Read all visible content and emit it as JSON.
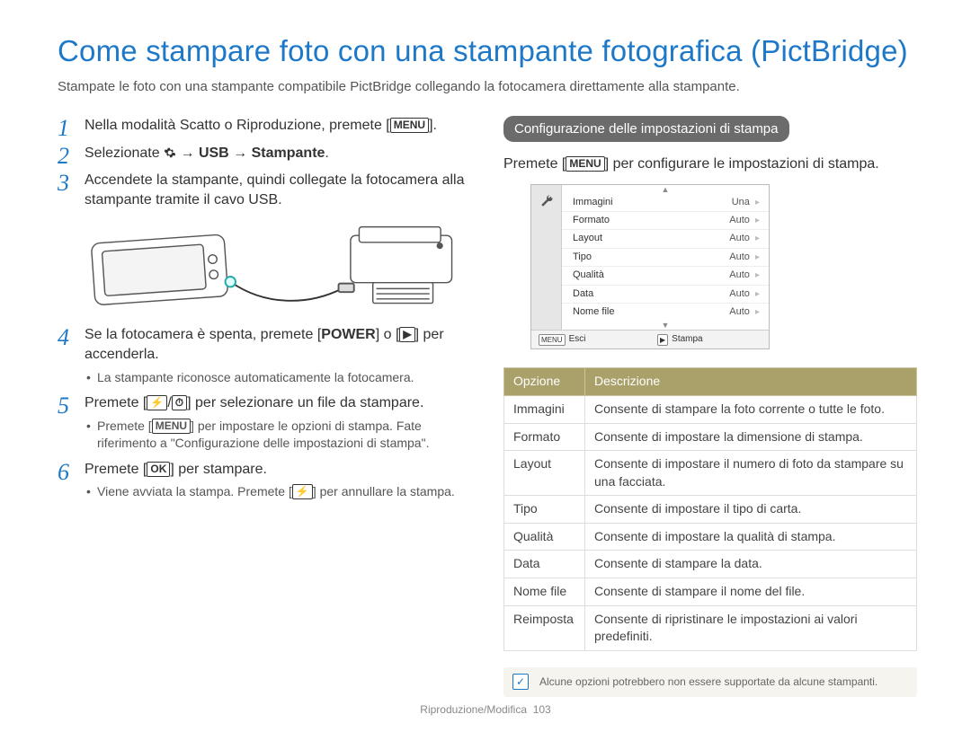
{
  "title": "Come stampare foto con una stampante fotografica (PictBridge)",
  "subtitle": "Stampate le foto con una stampante compatibile PictBridge collegando la fotocamera direttamente alla stampante.",
  "steps": {
    "s1_pre": "Nella modalità Scatto o Riproduzione, premete [",
    "s1_key": "MENU",
    "s1_post": "].",
    "s2_pre": "Selezionate ",
    "s2_mid1": " → ",
    "s2_usb": "USB",
    "s2_mid2": " → ",
    "s2_stamp": "Stampante",
    "s2_post": ".",
    "s3": "Accendete la stampante, quindi collegate la fotocamera alla stampante tramite il cavo USB.",
    "s4_pre": "Se la fotocamera è spenta, premete [",
    "s4_key": "POWER",
    "s4_mid": "] o [",
    "s4_icon_alt": "▶",
    "s4_post": "] per accenderla.",
    "s4_sub1": "La stampante riconosce automaticamente la fotocamera.",
    "s5_pre": "Premete [",
    "s5_icon1": "⚡",
    "s5_mid": "/",
    "s5_icon2": "⏱",
    "s5_post": "] per selezionare un file da stampare.",
    "s5_sub1_pre": "Premete [",
    "s5_sub1_key": "MENU",
    "s5_sub1_post": "] per impostare le opzioni di stampa. Fate riferimento a \"Configurazione delle impostazioni di stampa\".",
    "s6_pre": "Premete [",
    "s6_key": "OK",
    "s6_post": "] per stampare.",
    "s6_sub1_pre": "Viene avviata la stampa. Premete [",
    "s6_sub1_icon": "⚡",
    "s6_sub1_post": "] per annullare la stampa."
  },
  "right": {
    "badge": "Configurazione delle impostazioni di stampa",
    "intro_pre": "Premete [",
    "intro_key": "MENU",
    "intro_post": "] per configurare le impostazioni di stampa."
  },
  "lcd": {
    "rows": [
      {
        "label": "Immagini",
        "value": "Una"
      },
      {
        "label": "Formato",
        "value": "Auto"
      },
      {
        "label": "Layout",
        "value": "Auto"
      },
      {
        "label": "Tipo",
        "value": "Auto"
      },
      {
        "label": "Qualità",
        "value": "Auto"
      },
      {
        "label": "Data",
        "value": "Auto"
      },
      {
        "label": "Nome file",
        "value": "Auto"
      }
    ],
    "foot_left_key": "MENU",
    "foot_left": "Esci",
    "foot_right_key": "▶",
    "foot_right": "Stampa"
  },
  "opts_header": {
    "c1": "Opzione",
    "c2": "Descrizione"
  },
  "opts": [
    {
      "o": "Immagini",
      "d": "Consente di stampare la foto corrente o tutte le foto."
    },
    {
      "o": "Formato",
      "d": "Consente di impostare la dimensione di stampa."
    },
    {
      "o": "Layout",
      "d": "Consente di impostare il numero di foto da stampare su una facciata."
    },
    {
      "o": "Tipo",
      "d": "Consente di impostare il tipo di carta."
    },
    {
      "o": "Qualità",
      "d": "Consente di impostare la qualità di stampa."
    },
    {
      "o": "Data",
      "d": "Consente di stampare la data."
    },
    {
      "o": "Nome file",
      "d": "Consente di stampare il nome del file."
    },
    {
      "o": "Reimposta",
      "d": "Consente di ripristinare le impostazioni ai valori predefiniti."
    }
  ],
  "note": "Alcune opzioni potrebbero non essere supportate da alcune stampanti.",
  "footer_text": "Riproduzione/Modifica",
  "footer_page": "103",
  "colors": {
    "accent": "#1e78c8",
    "table_header": "#a9a06a",
    "badge_bg": "#6b6b6b"
  }
}
